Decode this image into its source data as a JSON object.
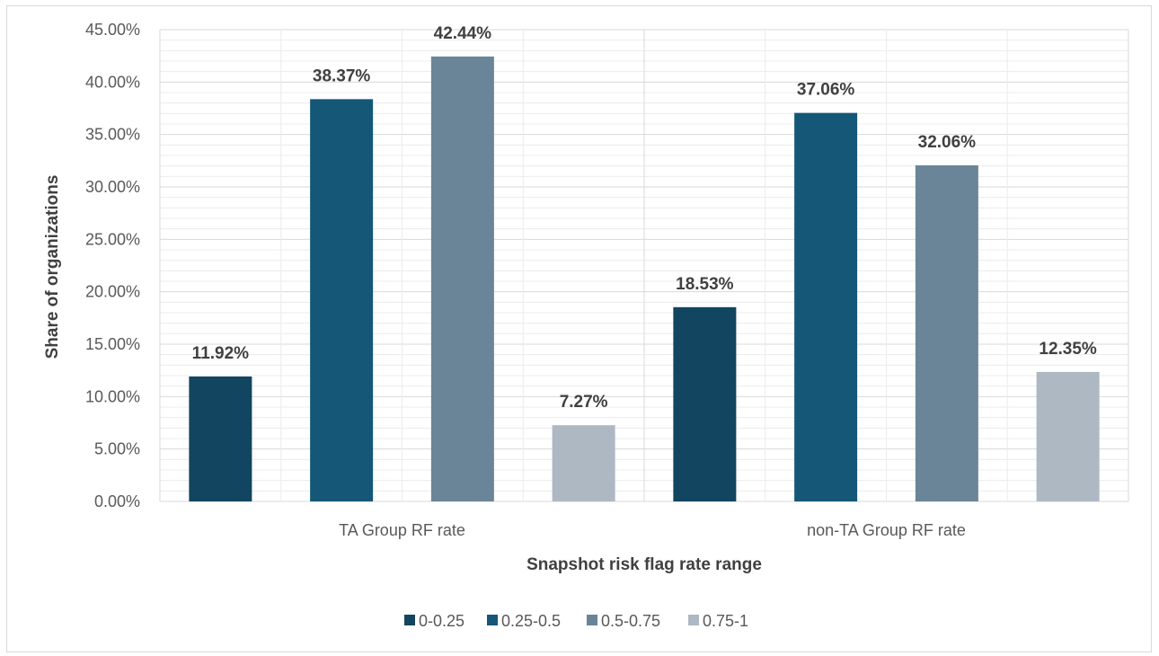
{
  "chart_data": {
    "type": "bar",
    "categories": [
      "TA Group RF rate",
      "non-TA Group RF rate"
    ],
    "series": [
      {
        "name": "0-0.25",
        "values": [
          11.92,
          18.53
        ],
        "labels": [
          "11.92%",
          "18.53%"
        ],
        "color": "#12455f"
      },
      {
        "name": "0.25-0.5",
        "values": [
          38.37,
          37.06
        ],
        "labels": [
          "38.37%",
          "37.06%"
        ],
        "color": "#145777"
      },
      {
        "name": "0.5-0.75",
        "values": [
          42.44,
          32.06
        ],
        "labels": [
          "42.44%",
          "32.06%"
        ],
        "color": "#6a8598"
      },
      {
        "name": "0.75-1",
        "values": [
          7.27,
          12.35
        ],
        "labels": [
          "7.27%",
          "12.35%"
        ],
        "color": "#adb8c3"
      }
    ],
    "xlabel": "Snapshot risk flag rate range",
    "ylabel": "Share of organizations",
    "ylim": [
      0,
      45
    ],
    "yticks": [
      "0.00%",
      "5.00%",
      "10.00%",
      "15.00%",
      "20.00%",
      "25.00%",
      "30.00%",
      "35.00%",
      "40.00%",
      "45.00%"
    ],
    "grid": true,
    "legend_position": "bottom"
  }
}
